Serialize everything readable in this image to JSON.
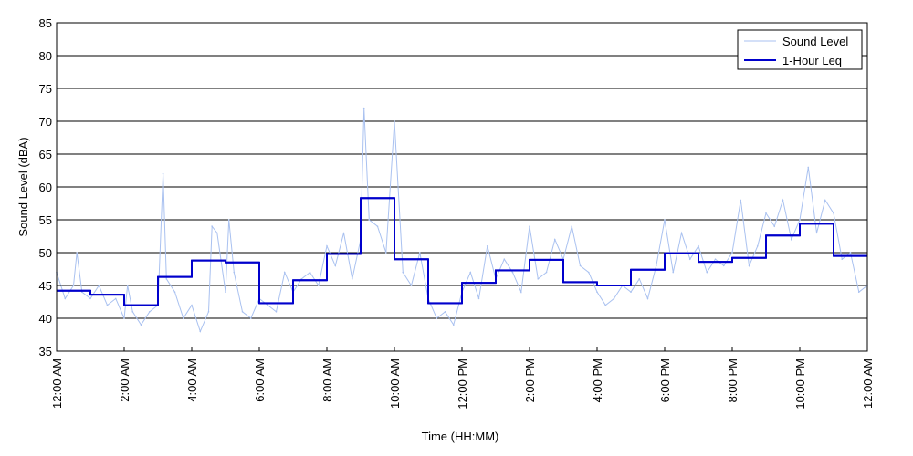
{
  "chart_data": {
    "type": "line",
    "title": "",
    "xlabel": "Time (HH:MM)",
    "ylabel": "Sound Level (dBA)",
    "xlim": [
      0,
      24
    ],
    "ylim": [
      35,
      85
    ],
    "x_unit": "hours since 12:00 AM",
    "yticks": [
      35,
      40,
      45,
      50,
      55,
      60,
      65,
      70,
      75,
      80,
      85
    ],
    "xticks": [
      {
        "x": 0,
        "label": "12:00 AM"
      },
      {
        "x": 2,
        "label": "2:00 AM"
      },
      {
        "x": 4,
        "label": "4:00 AM"
      },
      {
        "x": 6,
        "label": "6:00 AM"
      },
      {
        "x": 8,
        "label": "8:00 AM"
      },
      {
        "x": 10,
        "label": "10:00 AM"
      },
      {
        "x": 12,
        "label": "12:00 PM"
      },
      {
        "x": 14,
        "label": "2:00 PM"
      },
      {
        "x": 16,
        "label": "4:00 PM"
      },
      {
        "x": 18,
        "label": "6:00 PM"
      },
      {
        "x": 20,
        "label": "8:00 PM"
      },
      {
        "x": 22,
        "label": "10:00 PM"
      },
      {
        "x": 24,
        "label": "12:00 AM"
      }
    ],
    "grid": "horizontal",
    "legend": "top-right",
    "series": [
      {
        "name": "Sound Level",
        "color": "#a9c1f0",
        "style": "thin line",
        "x": [
          0,
          0.25,
          0.5,
          0.6,
          0.75,
          1.0,
          1.25,
          1.5,
          1.75,
          2.0,
          2.1,
          2.25,
          2.5,
          2.75,
          3.0,
          3.15,
          3.25,
          3.5,
          3.75,
          4.0,
          4.25,
          4.5,
          4.6,
          4.75,
          5.0,
          5.1,
          5.25,
          5.5,
          5.75,
          6.0,
          6.25,
          6.5,
          6.75,
          7.0,
          7.25,
          7.5,
          7.75,
          8.0,
          8.25,
          8.5,
          8.75,
          9.0,
          9.1,
          9.25,
          9.5,
          9.75,
          10.0,
          10.25,
          10.5,
          10.75,
          11.0,
          11.25,
          11.5,
          11.75,
          12.0,
          12.25,
          12.5,
          12.75,
          13.0,
          13.25,
          13.5,
          13.75,
          14.0,
          14.25,
          14.5,
          14.75,
          15.0,
          15.25,
          15.5,
          15.75,
          16.0,
          16.25,
          16.5,
          16.75,
          17.0,
          17.25,
          17.5,
          17.75,
          18.0,
          18.25,
          18.5,
          18.75,
          19.0,
          19.25,
          19.5,
          19.75,
          20.0,
          20.25,
          20.5,
          20.75,
          21.0,
          21.25,
          21.5,
          21.75,
          22.0,
          22.25,
          22.5,
          22.75,
          23.0,
          23.25,
          23.5,
          23.75,
          24.0
        ],
        "values": [
          47,
          43,
          45,
          50,
          44,
          43,
          45,
          42,
          43,
          40,
          45,
          41,
          39,
          41,
          42,
          62,
          46,
          44,
          40,
          42,
          38,
          41,
          54,
          53,
          44,
          55,
          47,
          41,
          40,
          43,
          42,
          41,
          47,
          44,
          46,
          47,
          45,
          51,
          48,
          53,
          46,
          52,
          72,
          55,
          54,
          50,
          70,
          47,
          45,
          50,
          43,
          40,
          41,
          39,
          44,
          47,
          43,
          51,
          46,
          49,
          47,
          44,
          54,
          46,
          47,
          52,
          49,
          54,
          48,
          47,
          44,
          42,
          43,
          45,
          44,
          46,
          43,
          48,
          55,
          47,
          53,
          49,
          51,
          47,
          49,
          48,
          50,
          58,
          48,
          51,
          56,
          54,
          58,
          52,
          55,
          63,
          53,
          58,
          56,
          49,
          50,
          44,
          45
        ]
      },
      {
        "name": "1-Hour Leq",
        "color": "#0000cc",
        "style": "step",
        "hours": [
          0,
          1,
          2,
          3,
          4,
          5,
          6,
          7,
          8,
          9,
          10,
          11,
          12,
          13,
          14,
          15,
          16,
          17,
          18,
          19,
          20,
          21,
          22,
          23
        ],
        "values": [
          44.2,
          43.6,
          42.0,
          46.3,
          48.8,
          48.5,
          42.3,
          45.8,
          49.8,
          58.3,
          49.0,
          42.3,
          45.4,
          47.3,
          48.9,
          45.5,
          45.0,
          47.4,
          49.9,
          48.6,
          49.2,
          52.6,
          54.4,
          49.5
        ]
      }
    ]
  }
}
